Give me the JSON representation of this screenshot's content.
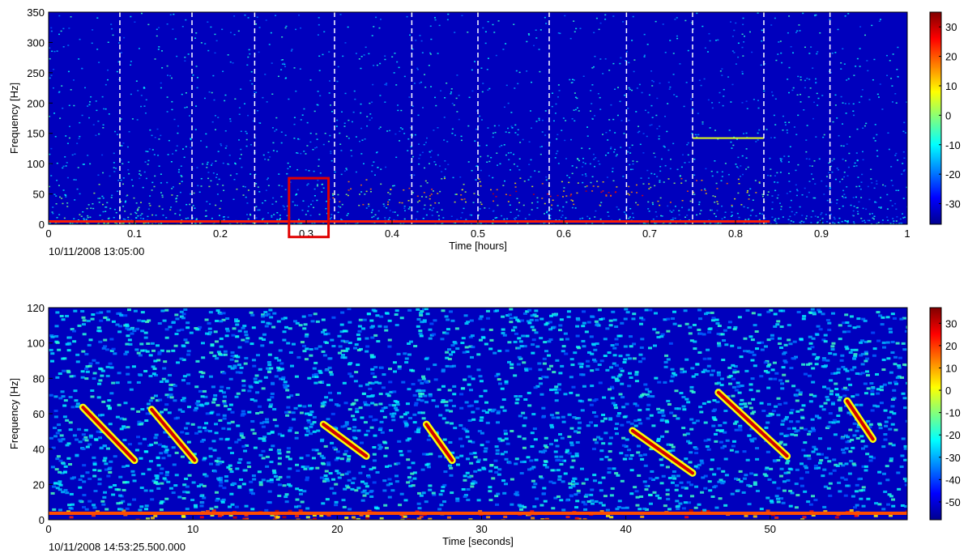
{
  "chart_data": [
    {
      "type": "spectrogram",
      "colormap": "jet",
      "ylabel": "Frequency [Hz]",
      "xlabel": "Time [hours]",
      "start_time": "10/11/2008 13:05:00",
      "xlim": [
        0,
        1
      ],
      "ylim": [
        0,
        350
      ],
      "xticks": [
        0,
        0.1,
        0.2,
        0.3,
        0.4,
        0.5,
        0.6,
        0.7,
        0.8,
        0.9,
        1
      ],
      "yticks": [
        0,
        50,
        100,
        150,
        200,
        250,
        300,
        350
      ],
      "clim": [
        -37,
        35
      ],
      "cticks": [
        30,
        20,
        10,
        0,
        -10,
        -20,
        -30
      ],
      "dashed_lines": [
        0.083,
        0.167,
        0.24,
        0.333,
        0.423,
        0.5,
        0.583,
        0.673,
        0.75,
        0.833,
        0.91
      ],
      "highlight": {
        "xlim": [
          0.28,
          0.326
        ],
        "ylim": [
          -21,
          76
        ],
        "color": "#e00000"
      }
    },
    {
      "type": "spectrogram",
      "colormap": "jet",
      "ylabel": "Frequency [Hz]",
      "xlabel": "Time [seconds]",
      "start_time": "10/11/2008 14:53:25.500.000",
      "xlim": [
        0,
        59.5
      ],
      "ylim": [
        0,
        120
      ],
      "xticks": [
        0,
        10,
        20,
        30,
        40,
        50
      ],
      "yticks": [
        0,
        20,
        40,
        60,
        80,
        100,
        120
      ],
      "clim": [
        -58,
        37
      ],
      "cticks": [
        30,
        20,
        10,
        0,
        -10,
        -20,
        -30,
        -40,
        -50
      ]
    }
  ]
}
